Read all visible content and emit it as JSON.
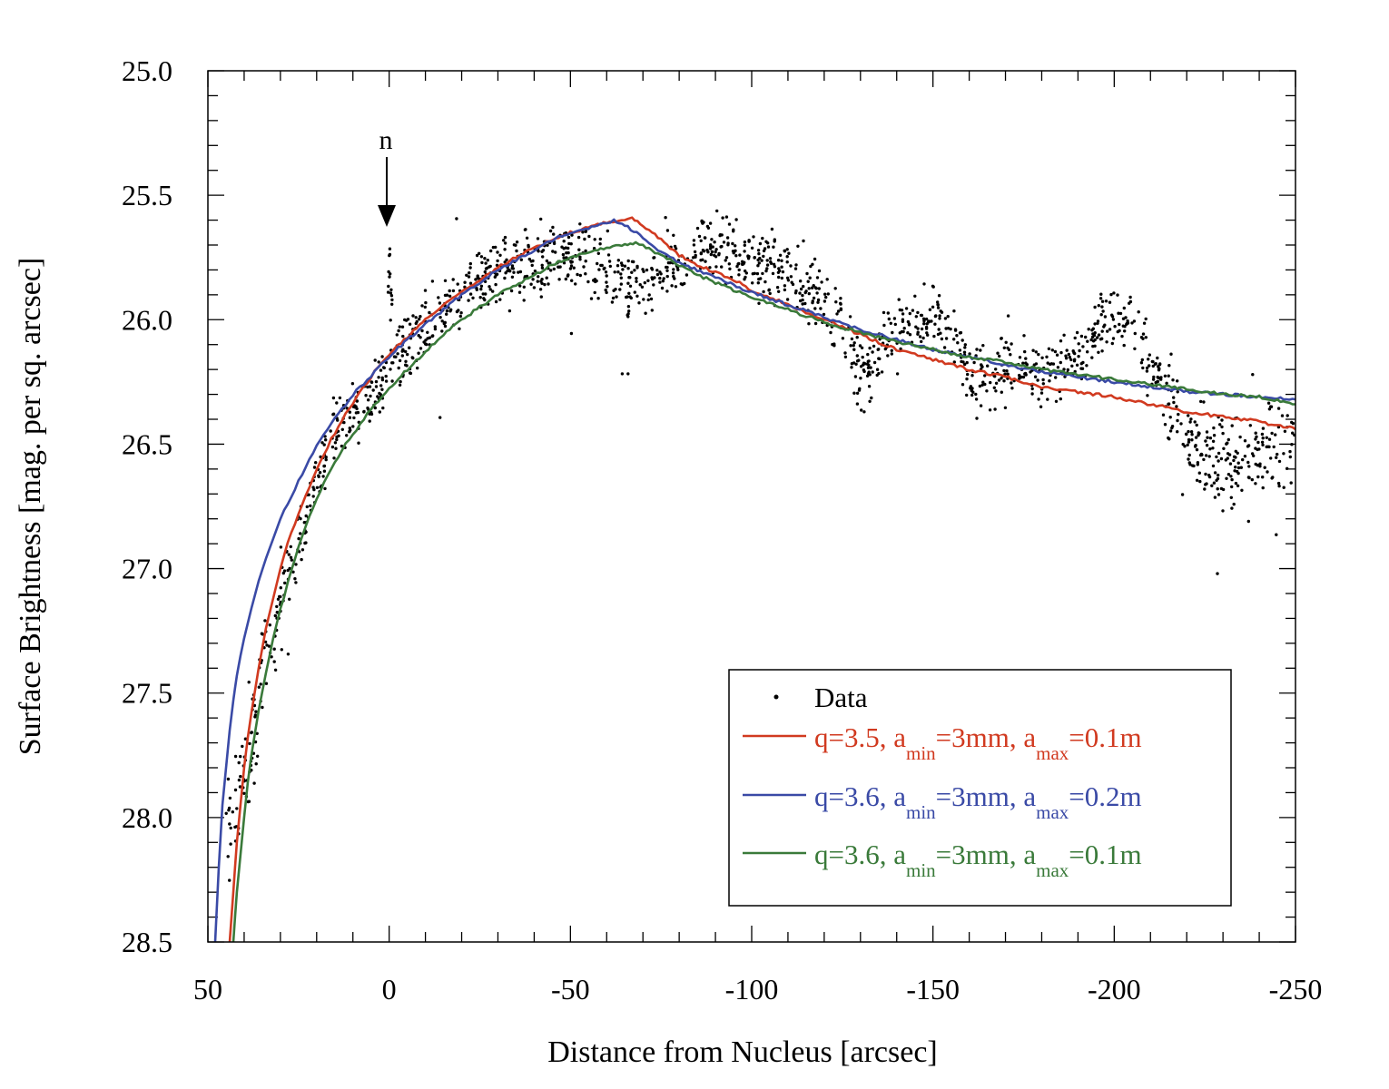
{
  "chart_data": {
    "type": "line",
    "title": "",
    "xlabel": "Distance from Nucleus [arcsec]",
    "ylabel": "Surface Brightness [mag. per sq. arcsec]",
    "xlim": [
      50,
      -250
    ],
    "ylim": [
      28.5,
      25.0
    ],
    "x_ticks": [
      50,
      0,
      -50,
      -100,
      -150,
      -200,
      -250
    ],
    "x_tick_labels": [
      "50",
      "0",
      "-50",
      "-100",
      "-150",
      "-200",
      "-250"
    ],
    "y_ticks": [
      25.0,
      25.5,
      26.0,
      26.5,
      27.0,
      27.5,
      28.0,
      28.5
    ],
    "y_tick_labels": [
      "25.0",
      "25.5",
      "26.0",
      "26.5",
      "27.0",
      "27.5",
      "28.0",
      "28.5"
    ],
    "legend_position": "bottom-right",
    "annotations": [
      {
        "text": "n",
        "x": 0,
        "y": 25.62,
        "arrow_to_y": 25.35
      }
    ],
    "series": [
      {
        "name": "Data",
        "kind": "scatter",
        "color": "#000000",
        "label_text": "Data",
        "envelope_x": [
          45,
          40,
          35,
          30,
          25,
          20,
          15,
          10,
          5,
          0,
          -5,
          -10,
          -15,
          -20,
          -25,
          -30,
          -35,
          -40,
          -45,
          -50,
          -55,
          -60,
          -65,
          -70,
          -75,
          -80,
          -85,
          -90,
          -95,
          -100,
          -105,
          -110,
          -115,
          -120,
          -125,
          -130,
          -135,
          -140,
          -145,
          -150,
          -155,
          -160,
          -165,
          -170,
          -175,
          -180,
          -185,
          -190,
          -195,
          -200,
          -205,
          -210,
          -215,
          -220,
          -225,
          -230,
          -235,
          -240,
          -245,
          -250
        ],
        "envelope_y": [
          28.1,
          27.85,
          27.4,
          27.1,
          26.9,
          26.65,
          26.45,
          26.35,
          26.3,
          26.2,
          26.1,
          26.05,
          25.95,
          25.9,
          25.85,
          25.8,
          25.78,
          25.76,
          25.74,
          25.73,
          25.75,
          25.82,
          25.88,
          25.86,
          25.8,
          25.75,
          25.72,
          25.7,
          25.72,
          25.75,
          25.77,
          25.8,
          25.88,
          25.95,
          26.0,
          26.25,
          26.15,
          26.05,
          26.0,
          25.98,
          26.05,
          26.2,
          26.25,
          26.18,
          26.2,
          26.22,
          26.2,
          26.15,
          26.05,
          26.0,
          26.05,
          26.15,
          26.35,
          26.5,
          26.55,
          26.6,
          26.6,
          26.55,
          26.5,
          26.6
        ],
        "scatter_spread": 0.09,
        "point_count": 1700
      },
      {
        "name": "q=3.5, a_min=3mm, a_max=0.1m",
        "kind": "line",
        "color": "#d13a20",
        "label_q": "q=3.5, a",
        "label_mid": "=3mm, a",
        "label_end": "=0.1m",
        "sub_min": "min",
        "sub_max": "max",
        "x": [
          44,
          43,
          42,
          41,
          40,
          39,
          38,
          36,
          34,
          32,
          30,
          28,
          26,
          24,
          22,
          20,
          18,
          16,
          14,
          12,
          10,
          8,
          6,
          4,
          2,
          0,
          -5,
          -10,
          -15,
          -20,
          -25,
          -30,
          -35,
          -40,
          -45,
          -50,
          -55,
          -60,
          -65,
          -67,
          -70,
          -75,
          -80,
          -85,
          -90,
          -95,
          -100,
          -110,
          -120,
          -130,
          -140,
          -150,
          -160,
          -170,
          -180,
          -190,
          -200,
          -210,
          -220,
          -230,
          -240,
          -250
        ],
        "y": [
          28.5,
          28.3,
          28.1,
          27.95,
          27.8,
          27.68,
          27.58,
          27.4,
          27.24,
          27.12,
          27.0,
          26.9,
          26.82,
          26.74,
          26.67,
          26.6,
          26.54,
          26.48,
          26.43,
          26.38,
          26.34,
          26.29,
          26.25,
          26.21,
          26.17,
          26.14,
          26.07,
          26.0,
          25.94,
          25.89,
          25.84,
          25.79,
          25.75,
          25.71,
          25.68,
          25.65,
          25.63,
          25.61,
          25.6,
          25.59,
          25.62,
          25.68,
          25.74,
          25.78,
          25.81,
          25.84,
          25.88,
          25.94,
          26.0,
          26.06,
          26.12,
          26.16,
          26.2,
          26.23,
          26.27,
          26.29,
          26.31,
          26.34,
          26.37,
          26.39,
          26.41,
          26.44
        ]
      },
      {
        "name": "q=3.6, a_min=3mm, a_max=0.2m",
        "kind": "line",
        "color": "#3a4aa6",
        "label_q": "q=3.6, a",
        "label_mid": "=3mm, a",
        "label_end": "=0.2m",
        "sub_min": "min",
        "sub_max": "max",
        "x": [
          48,
          47,
          46,
          45,
          44,
          43,
          42,
          41,
          40,
          38,
          36,
          34,
          32,
          30,
          28,
          26,
          24,
          22,
          20,
          18,
          16,
          14,
          12,
          10,
          8,
          6,
          4,
          2,
          0,
          -5,
          -10,
          -15,
          -20,
          -25,
          -30,
          -35,
          -40,
          -45,
          -50,
          -55,
          -60,
          -62,
          -65,
          -70,
          -75,
          -80,
          -85,
          -90,
          -95,
          -100,
          -110,
          -120,
          -130,
          -140,
          -150,
          -160,
          -170,
          -180,
          -190,
          -200,
          -210,
          -220,
          -230,
          -240,
          -250
        ],
        "y": [
          28.5,
          28.2,
          27.95,
          27.8,
          27.65,
          27.53,
          27.43,
          27.35,
          27.28,
          27.16,
          27.05,
          26.96,
          26.88,
          26.8,
          26.74,
          26.68,
          26.62,
          26.56,
          26.51,
          26.46,
          26.42,
          26.38,
          26.34,
          26.3,
          26.27,
          26.24,
          26.21,
          26.18,
          26.15,
          26.08,
          26.02,
          25.96,
          25.9,
          25.85,
          25.8,
          25.76,
          25.72,
          25.68,
          25.65,
          25.63,
          25.61,
          25.6,
          25.62,
          25.67,
          25.73,
          25.77,
          25.8,
          25.83,
          25.86,
          25.89,
          25.94,
          25.99,
          26.04,
          26.08,
          26.12,
          26.15,
          26.18,
          26.21,
          26.23,
          26.25,
          26.27,
          26.29,
          26.3,
          26.31,
          26.32
        ]
      },
      {
        "name": "q=3.6, a_min=3mm, a_max=0.1m",
        "kind": "line",
        "color": "#3a7a3a",
        "label_q": "q=3.6, a",
        "label_mid": "=3mm, a",
        "label_end": "=0.1m",
        "sub_min": "min",
        "sub_max": "max",
        "x": [
          43,
          42,
          41,
          40,
          39,
          38,
          36,
          34,
          32,
          30,
          28,
          26,
          24,
          22,
          20,
          18,
          16,
          14,
          12,
          10,
          8,
          6,
          4,
          2,
          0,
          -5,
          -10,
          -15,
          -20,
          -25,
          -30,
          -35,
          -40,
          -45,
          -50,
          -55,
          -60,
          -65,
          -68,
          -70,
          -75,
          -80,
          -85,
          -90,
          -95,
          -100,
          -110,
          -120,
          -130,
          -140,
          -150,
          -160,
          -170,
          -180,
          -190,
          -200,
          -210,
          -220,
          -230,
          -240,
          -250
        ],
        "y": [
          28.5,
          28.3,
          28.15,
          28.0,
          27.86,
          27.75,
          27.57,
          27.42,
          27.28,
          27.16,
          27.06,
          26.96,
          26.87,
          26.79,
          26.72,
          26.66,
          26.6,
          26.55,
          26.5,
          26.46,
          26.42,
          26.38,
          26.34,
          26.31,
          26.28,
          26.2,
          26.13,
          26.06,
          26.0,
          25.95,
          25.9,
          25.86,
          25.82,
          25.78,
          25.75,
          25.73,
          25.71,
          25.7,
          25.69,
          25.7,
          25.74,
          25.78,
          25.82,
          25.85,
          25.88,
          25.91,
          25.96,
          26.01,
          26.05,
          26.09,
          26.12,
          26.15,
          26.17,
          26.2,
          26.22,
          26.24,
          26.26,
          26.28,
          26.3,
          26.31,
          26.34
        ]
      }
    ]
  }
}
